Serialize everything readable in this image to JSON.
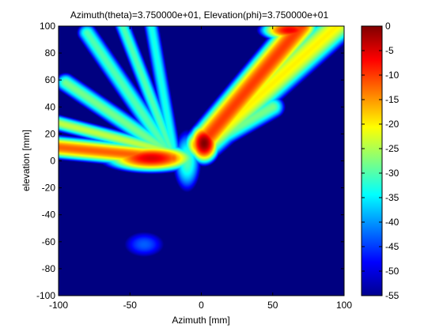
{
  "chart_data": {
    "type": "heatmap",
    "title": "Azimuth(theta)=3.750000e+01, Elevation(phi)=3.750000e+01",
    "xlabel": "Azimuth [mm]",
    "ylabel": "elevation [mm]",
    "xlim": [
      -100,
      100
    ],
    "ylim": [
      -100,
      100
    ],
    "xticks": [
      -100,
      -50,
      0,
      50,
      100
    ],
    "yticks": [
      -100,
      -80,
      -60,
      -40,
      -20,
      0,
      20,
      40,
      60,
      80,
      100
    ],
    "colorbar": {
      "range": [
        -55,
        0
      ],
      "ticks": [
        0,
        -5,
        -10,
        -15,
        -20,
        -25,
        -30,
        -35,
        -40,
        -45,
        -50,
        -55
      ],
      "colormap": "jet",
      "placement": "right"
    },
    "background_value": -55,
    "features": [
      {
        "kind": "hotspot",
        "x": 2,
        "y": 13,
        "peak_db": 0,
        "sx": 5,
        "sy": 7
      },
      {
        "kind": "hotspot",
        "x": -35,
        "y": 2,
        "peak_db": -5,
        "sx": 16,
        "sy": 5
      },
      {
        "kind": "ridge",
        "from": [
          -100,
          10
        ],
        "to": [
          -20,
          2
        ],
        "peak_db": -12,
        "width": 5
      },
      {
        "kind": "ridge",
        "from": [
          -100,
          28
        ],
        "to": [
          -20,
          6
        ],
        "peak_db": -24,
        "width": 4
      },
      {
        "kind": "ridge",
        "from": [
          -95,
          58
        ],
        "to": [
          -25,
          8
        ],
        "peak_db": -28,
        "width": 5
      },
      {
        "kind": "ridge",
        "from": [
          -80,
          95
        ],
        "to": [
          -25,
          10
        ],
        "peak_db": -30,
        "width": 5
      },
      {
        "kind": "ridge",
        "from": [
          -55,
          100
        ],
        "to": [
          -22,
          10
        ],
        "peak_db": -30,
        "width": 4
      },
      {
        "kind": "ridge",
        "from": [
          -35,
          100
        ],
        "to": [
          -20,
          10
        ],
        "peak_db": -33,
        "width": 4
      },
      {
        "kind": "ridge",
        "from": [
          0,
          12
        ],
        "to": [
          70,
          100
        ],
        "peak_db": -10,
        "width": 7
      },
      {
        "kind": "ridge",
        "from": [
          5,
          15
        ],
        "to": [
          95,
          100
        ],
        "peak_db": -20,
        "width": 8
      },
      {
        "kind": "ridge",
        "from": [
          0,
          10
        ],
        "to": [
          50,
          40
        ],
        "peak_db": -28,
        "width": 6
      },
      {
        "kind": "hotspot",
        "x": 62,
        "y": 97,
        "peak_db": -6,
        "sx": 10,
        "sy": 4
      },
      {
        "kind": "hotspot",
        "x": -10,
        "y": 0,
        "peak_db": -30,
        "sx": 6,
        "sy": 14
      },
      {
        "kind": "hotspot",
        "x": -40,
        "y": -62,
        "peak_db": -43,
        "sx": 12,
        "sy": 8
      }
    ]
  }
}
